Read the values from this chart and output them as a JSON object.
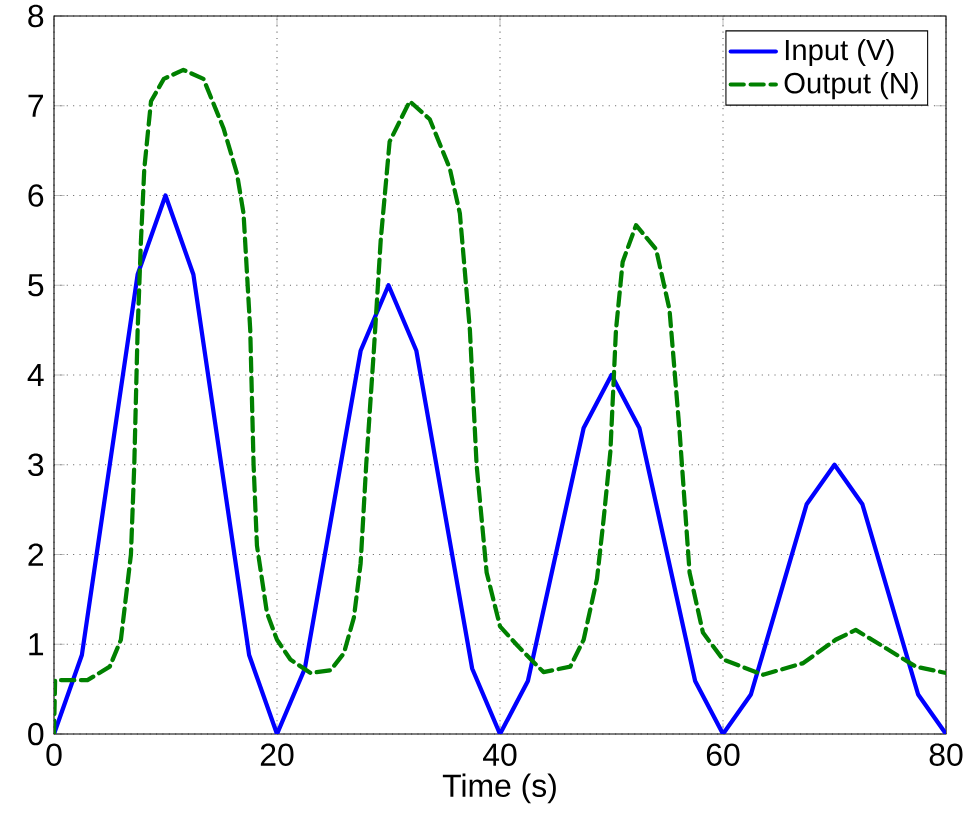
{
  "chart_data": {
    "type": "line",
    "xlabel": "Time (s)",
    "xlim": [
      0,
      80
    ],
    "ylim": [
      0,
      8
    ],
    "xticks": [
      0,
      20,
      40,
      60,
      80
    ],
    "yticks": [
      0,
      1,
      2,
      3,
      4,
      5,
      6,
      7,
      8
    ],
    "grid": true,
    "legend": "top right",
    "series": [
      {
        "name": "Input (V)",
        "color": "#0000ff",
        "line_style": "solid",
        "x": [
          0,
          2.5,
          5,
          7.5,
          10,
          12.5,
          15,
          17.5,
          20,
          22.5,
          25,
          27.5,
          30,
          32.5,
          35,
          37.5,
          40,
          42.5,
          45,
          47.5,
          50,
          52.5,
          55,
          57.5,
          60,
          62.5,
          65,
          67.5,
          70,
          72.5,
          75,
          77.5,
          80
        ],
        "values": [
          0,
          0.88,
          3.0,
          5.12,
          6,
          5.12,
          3.0,
          0.88,
          0,
          0.73,
          2.5,
          4.27,
          5,
          4.27,
          2.5,
          0.73,
          0,
          0.59,
          2.0,
          3.41,
          4,
          3.41,
          2.0,
          0.59,
          0,
          0.44,
          1.5,
          2.56,
          3,
          2.56,
          1.5,
          0.44,
          0
        ]
      },
      {
        "name": "Output (N)",
        "color": "#008000",
        "line_style": "dashed",
        "x": [
          0,
          0.1,
          3,
          5,
          6,
          6.9,
          7.2,
          7.5,
          7.8,
          8.1,
          8.7,
          9.85,
          11.6,
          13.4,
          15.2,
          16.4,
          17,
          17.6,
          17.9,
          18.2,
          19.1,
          20,
          21.2,
          23,
          24.8,
          26,
          26.9,
          27.5,
          28,
          28.7,
          29.3,
          30.1,
          31.9,
          33.7,
          35.5,
          36.4,
          37.3,
          37.9,
          38.8,
          40,
          41.6,
          43.9,
          46.3,
          47.5,
          48.7,
          49.3,
          49.9,
          50.4,
          51,
          52.2,
          54,
          55.2,
          56.1,
          57,
          58.2,
          60,
          63.6,
          67.2,
          70.1,
          71.9,
          74.3,
          77.3,
          80
        ],
        "values": [
          0,
          0.6,
          0.6,
          0.75,
          1.05,
          2.0,
          3.0,
          4.5,
          5.5,
          6.3,
          7.05,
          7.3,
          7.4,
          7.3,
          6.75,
          6.25,
          5.8,
          4.5,
          3.0,
          2.1,
          1.35,
          1.05,
          0.83,
          0.68,
          0.71,
          0.9,
          1.3,
          1.9,
          3.0,
          4.3,
          5.5,
          6.6,
          7.05,
          6.85,
          6.3,
          5.8,
          4.5,
          3.0,
          1.8,
          1.2,
          0.98,
          0.69,
          0.75,
          1.05,
          1.73,
          2.4,
          3.15,
          4.5,
          5.26,
          5.67,
          5.4,
          4.73,
          3.38,
          1.8,
          1.13,
          0.83,
          0.66,
          0.79,
          1.05,
          1.16,
          0.98,
          0.75,
          0.68
        ]
      }
    ]
  }
}
